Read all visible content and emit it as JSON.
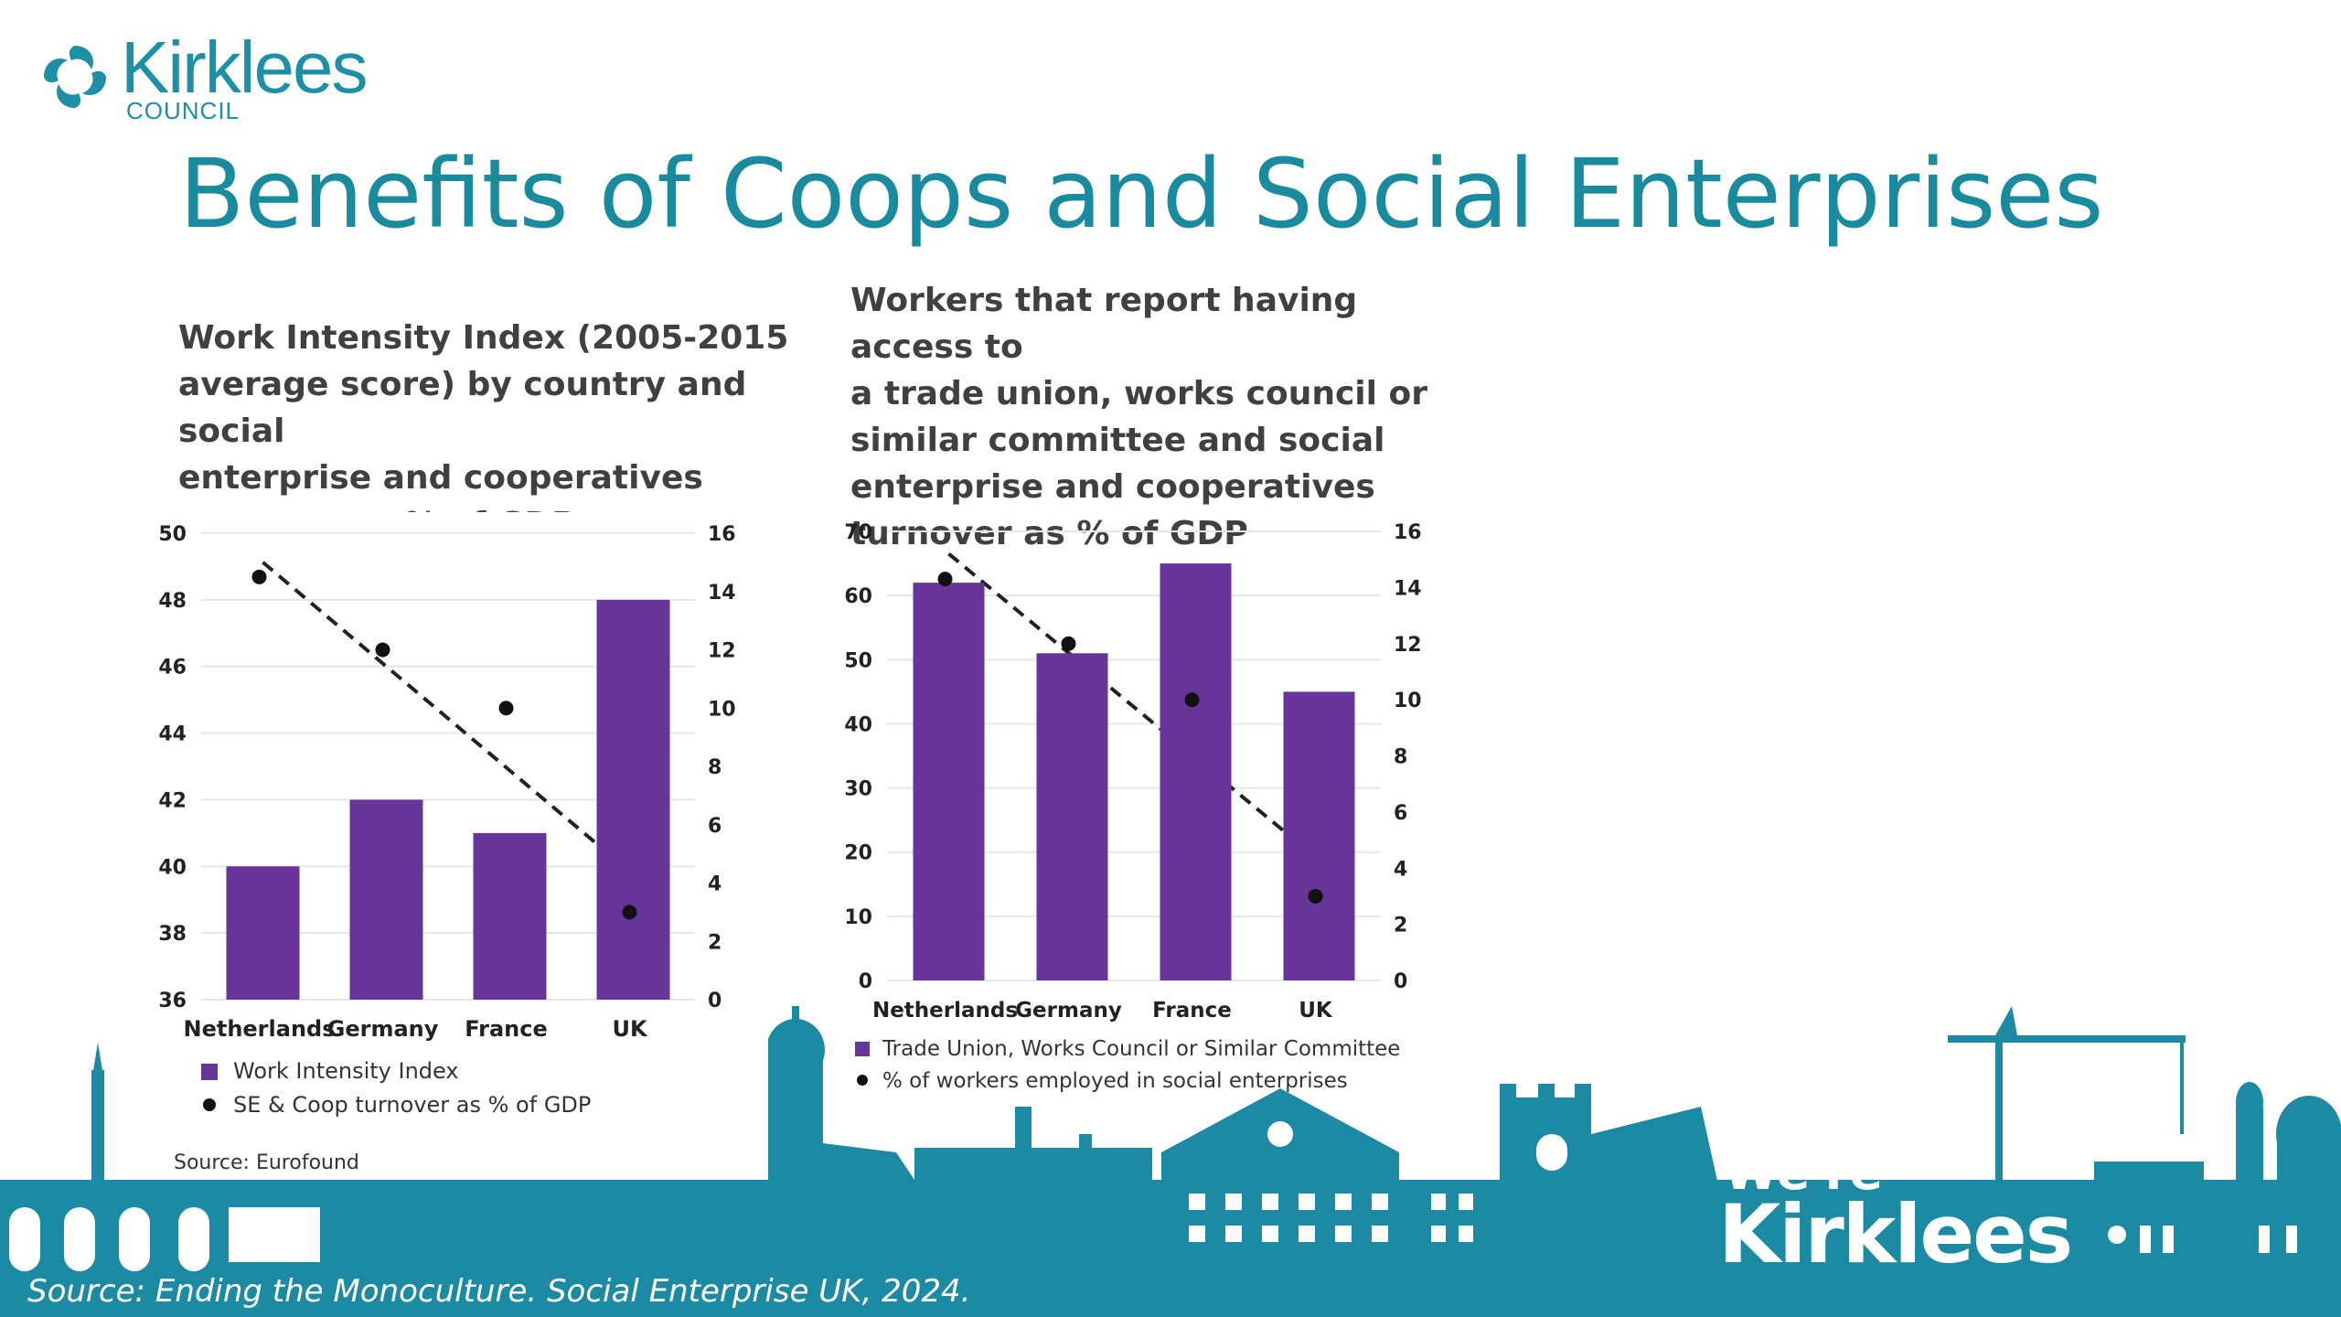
{
  "header": {
    "logo_name": "Kirklees",
    "logo_sub": "COUNCIL",
    "title": "Benefits of Coops and Social Enterprises"
  },
  "colors": {
    "teal": "#1a8b9e",
    "bar": "#67359a",
    "skyline": "#1d8aa3"
  },
  "chart_data": [
    {
      "type": "bar",
      "title": "Work Intensity Index (2005-2015 average score) by country and social enterprise and cooperatives turnover as % of GDP",
      "categories": [
        "Netherlands",
        "Germany",
        "France",
        "UK"
      ],
      "series": [
        {
          "name": "Work Intensity Index",
          "kind": "bar",
          "axis": "left",
          "values": [
            40,
            42,
            41,
            48
          ]
        },
        {
          "name": "SE & Coop turnover as % of GDP",
          "kind": "scatter",
          "axis": "right",
          "values": [
            14.5,
            12,
            10,
            3
          ]
        }
      ],
      "trendline": {
        "style": "dashed",
        "start": 15,
        "end": 4.5,
        "axis": "right"
      },
      "ylim": [
        36,
        50
      ],
      "yticks": [
        36,
        38,
        40,
        42,
        44,
        46,
        48,
        50
      ],
      "y2lim": [
        0,
        16
      ],
      "y2ticks": [
        0,
        2,
        4,
        6,
        8,
        10,
        12,
        14,
        16
      ],
      "legend": [
        "Work Intensity Index",
        "SE & Coop turnover as % of GDP"
      ],
      "source": "Source: Eurofound"
    },
    {
      "type": "bar",
      "title": "Workers that report having access to a trade union, works council or similar committee and social enterprise and cooperatives turnover as % of GDP",
      "categories": [
        "Netherlands",
        "Germany",
        "France",
        "UK"
      ],
      "series": [
        {
          "name": "Trade Union, Works Council or Similar Committee",
          "kind": "bar",
          "axis": "left",
          "values": [
            62,
            51,
            65,
            45
          ]
        },
        {
          "name": "% of workers employed in social enterprises",
          "kind": "scatter",
          "axis": "right",
          "values": [
            14.3,
            12,
            10,
            3
          ]
        }
      ],
      "trendline": {
        "style": "dashed",
        "start": 15.2,
        "end": 4.5,
        "axis": "right"
      },
      "ylim": [
        0,
        70
      ],
      "yticks": [
        0,
        10,
        20,
        30,
        40,
        50,
        60,
        70
      ],
      "y2lim": [
        0,
        16
      ],
      "y2ticks": [
        0,
        2,
        4,
        6,
        8,
        10,
        12,
        14,
        16
      ],
      "legend": [
        "Trade Union, Works Council or Similar Committee",
        "% of workers employed in social enterprises"
      ]
    }
  ],
  "chart1_title_lines": [
    "Work Intensity Index (2005-2015",
    "average score) by country and social",
    "enterprise and cooperatives",
    "turnover as % of GDP"
  ],
  "chart2_title_lines": [
    "Workers that report having access to",
    "a trade union, works council or",
    "similar committee and social",
    "enterprise and cooperatives",
    "turnover as % of GDP"
  ],
  "footer": {
    "source": "Source: Ending the Monoculture. Social Enterprise UK, 2024.",
    "brand_we": "We're",
    "brand_name": "Kirklees"
  }
}
